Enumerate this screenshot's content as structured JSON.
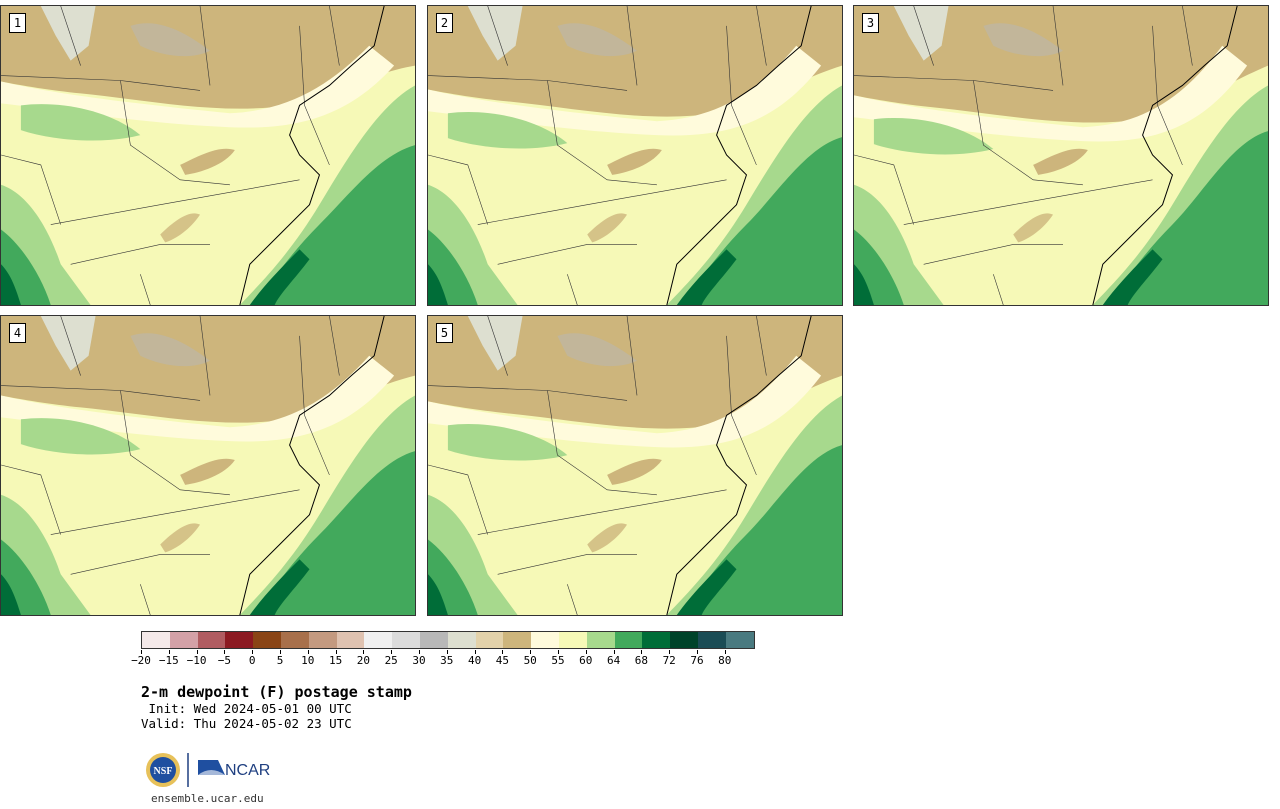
{
  "panels": [
    {
      "label": "1"
    },
    {
      "label": "2"
    },
    {
      "label": "3"
    },
    {
      "label": "4"
    },
    {
      "label": "5"
    }
  ],
  "colorbar": {
    "colors": [
      "#f4e9e9",
      "#d4a1a7",
      "#b05c61",
      "#8c1a22",
      "#8a4516",
      "#a8704b",
      "#c49a80",
      "#dfc2b0",
      "#f0f0f0",
      "#dcdcdc",
      "#b8b8b8",
      "#dddfd0",
      "#e3d2aa",
      "#cdb57c",
      "#fffbdc",
      "#f6f9b7",
      "#a7d98d",
      "#42a95c",
      "#006d38",
      "#00432a",
      "#1b4c55",
      "#4a7a80"
    ],
    "tick_labels": [
      "−20",
      "−15",
      "−10",
      "−5",
      "0",
      "5",
      "10",
      "15",
      "20",
      "25",
      "30",
      "35",
      "40",
      "45",
      "50",
      "55",
      "60",
      "64",
      "68",
      "72",
      "76",
      "80"
    ]
  },
  "title": "2-m dewpoint (F) postage stamp",
  "init": " Init: Wed 2024-05-01 00 UTC",
  "valid": "Valid: Thu 2024-05-02 23 UTC",
  "logos": {
    "nsf": "NSF",
    "ncar": "NCAR"
  },
  "url": "ensemble.ucar.edu"
}
